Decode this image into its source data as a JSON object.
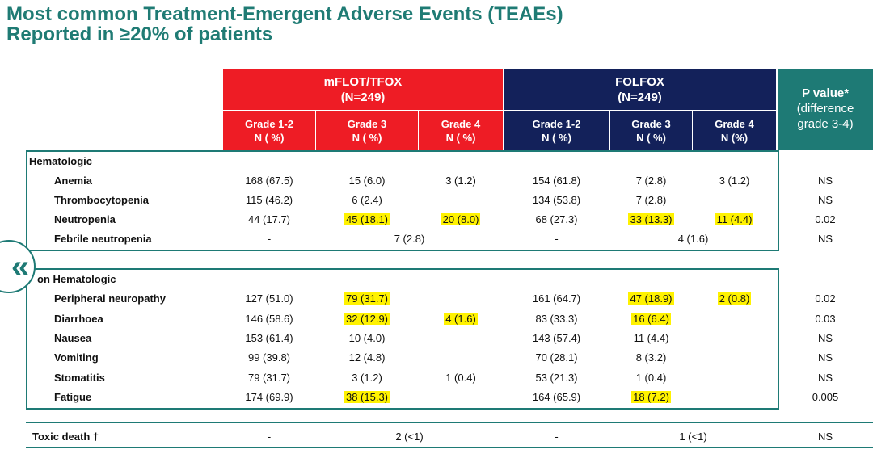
{
  "title": {
    "line1": "Most common Treatment-Emergent Adverse Events (TEAEs)",
    "line2": "Reported in ≥20% of patients"
  },
  "groups": {
    "mflot": {
      "name": "mFLOT/TFOX",
      "n": "(N=249)"
    },
    "folfox": {
      "name": "FOLFOX",
      "n": "(N=249)"
    }
  },
  "subheaders": {
    "g12": {
      "grade": "Grade 1-2",
      "n": "N ( %)"
    },
    "g3": {
      "grade": "Grade 3",
      "n": "N ( %)"
    },
    "g4": {
      "grade": "Grade 4",
      "n": "N ( %)"
    },
    "g4b": {
      "grade": "Grade 4",
      "n": "N (%)"
    }
  },
  "pvalue_header": {
    "line1": "P value*",
    "line2": "(difference",
    "line3": "grade 3-4)"
  },
  "sections": {
    "hematologic": "Hematologic",
    "non_hematologic": "on Hematologic"
  },
  "rows": [
    {
      "label": "Anemia",
      "m12": "168 (67.5)",
      "m3": "15 (6.0)",
      "m4": "3 (1.2)",
      "f12": "154 (61.8)",
      "f3": "7 (2.8)",
      "f4": "3 (1.2)",
      "p": "NS"
    },
    {
      "label": "Thrombocytopenia",
      "m12": "115 (46.2)",
      "m3": "6 (2.4)",
      "m4": "",
      "f12": "134 (53.8)",
      "f3": "7 (2.8)",
      "f4": "",
      "p": "NS"
    },
    {
      "label": "Neutropenia",
      "m12": "44 (17.7)",
      "m3": "45 (18.1)",
      "m4": "20 (8.0)",
      "f12": "68 (27.3)",
      "f3": "33 (13.3)",
      "f4": "11 (4.4)",
      "p": "0.02"
    },
    {
      "label": "Febrile neutropenia",
      "m12": "-",
      "m34": "7 (2.8)",
      "f12": "-",
      "f34": "4 (1.6)",
      "p": "NS"
    },
    {
      "label": "Peripheral neuropathy",
      "m12": "127 (51.0)",
      "m3": "79 (31.7)",
      "m4": "",
      "f12": "161 (64.7)",
      "f3": "47 (18.9)",
      "f4": "2 (0.8)",
      "p": "0.02"
    },
    {
      "label": "Diarrhoea",
      "m12": "146 (58.6)",
      "m3": "32 (12.9)",
      "m4": "4 (1.6)",
      "f12": "83 (33.3)",
      "f3": "16 (6.4)",
      "f4": "",
      "p": "0.03"
    },
    {
      "label": "Nausea",
      "m12": "153 (61.4)",
      "m3": "10 (4.0)",
      "m4": "",
      "f12": "143 (57.4)",
      "f3": "11 (4.4)",
      "f4": "",
      "p": "NS"
    },
    {
      "label": "Vomiting",
      "m12": "99 (39.8)",
      "m3": "12 (4.8)",
      "m4": "",
      "f12": "70 (28.1)",
      "f3": "8 (3.2)",
      "f4": "",
      "p": "NS"
    },
    {
      "label": "Stomatitis",
      "m12": "79 (31.7)",
      "m3": "3 (1.2)",
      "m4": "1 (0.4)",
      "f12": "53 (21.3)",
      "f3": "1 (0.4)",
      "f4": "",
      "p": "NS"
    },
    {
      "label": "Fatigue",
      "m12": "174 (69.9)",
      "m3": "38 (15.3)",
      "m4": "",
      "f12": "164 (65.9)",
      "f3": "18 (7.2)",
      "f4": "",
      "p": "0.005"
    },
    {
      "label": "Toxic death †",
      "m12": "-",
      "m34": "2 (<1)",
      "f12": "-",
      "f34": "1 (<1)",
      "p": "NS"
    }
  ],
  "colors": {
    "mflot": "#ee1c25",
    "folfox": "#13215a",
    "pvalue": "#1e7a75",
    "highlight": "#fff200",
    "title": "#1f7b74"
  },
  "icons": {
    "collapse": "double-chevron-left-icon"
  },
  "collapse_glyph": "«"
}
